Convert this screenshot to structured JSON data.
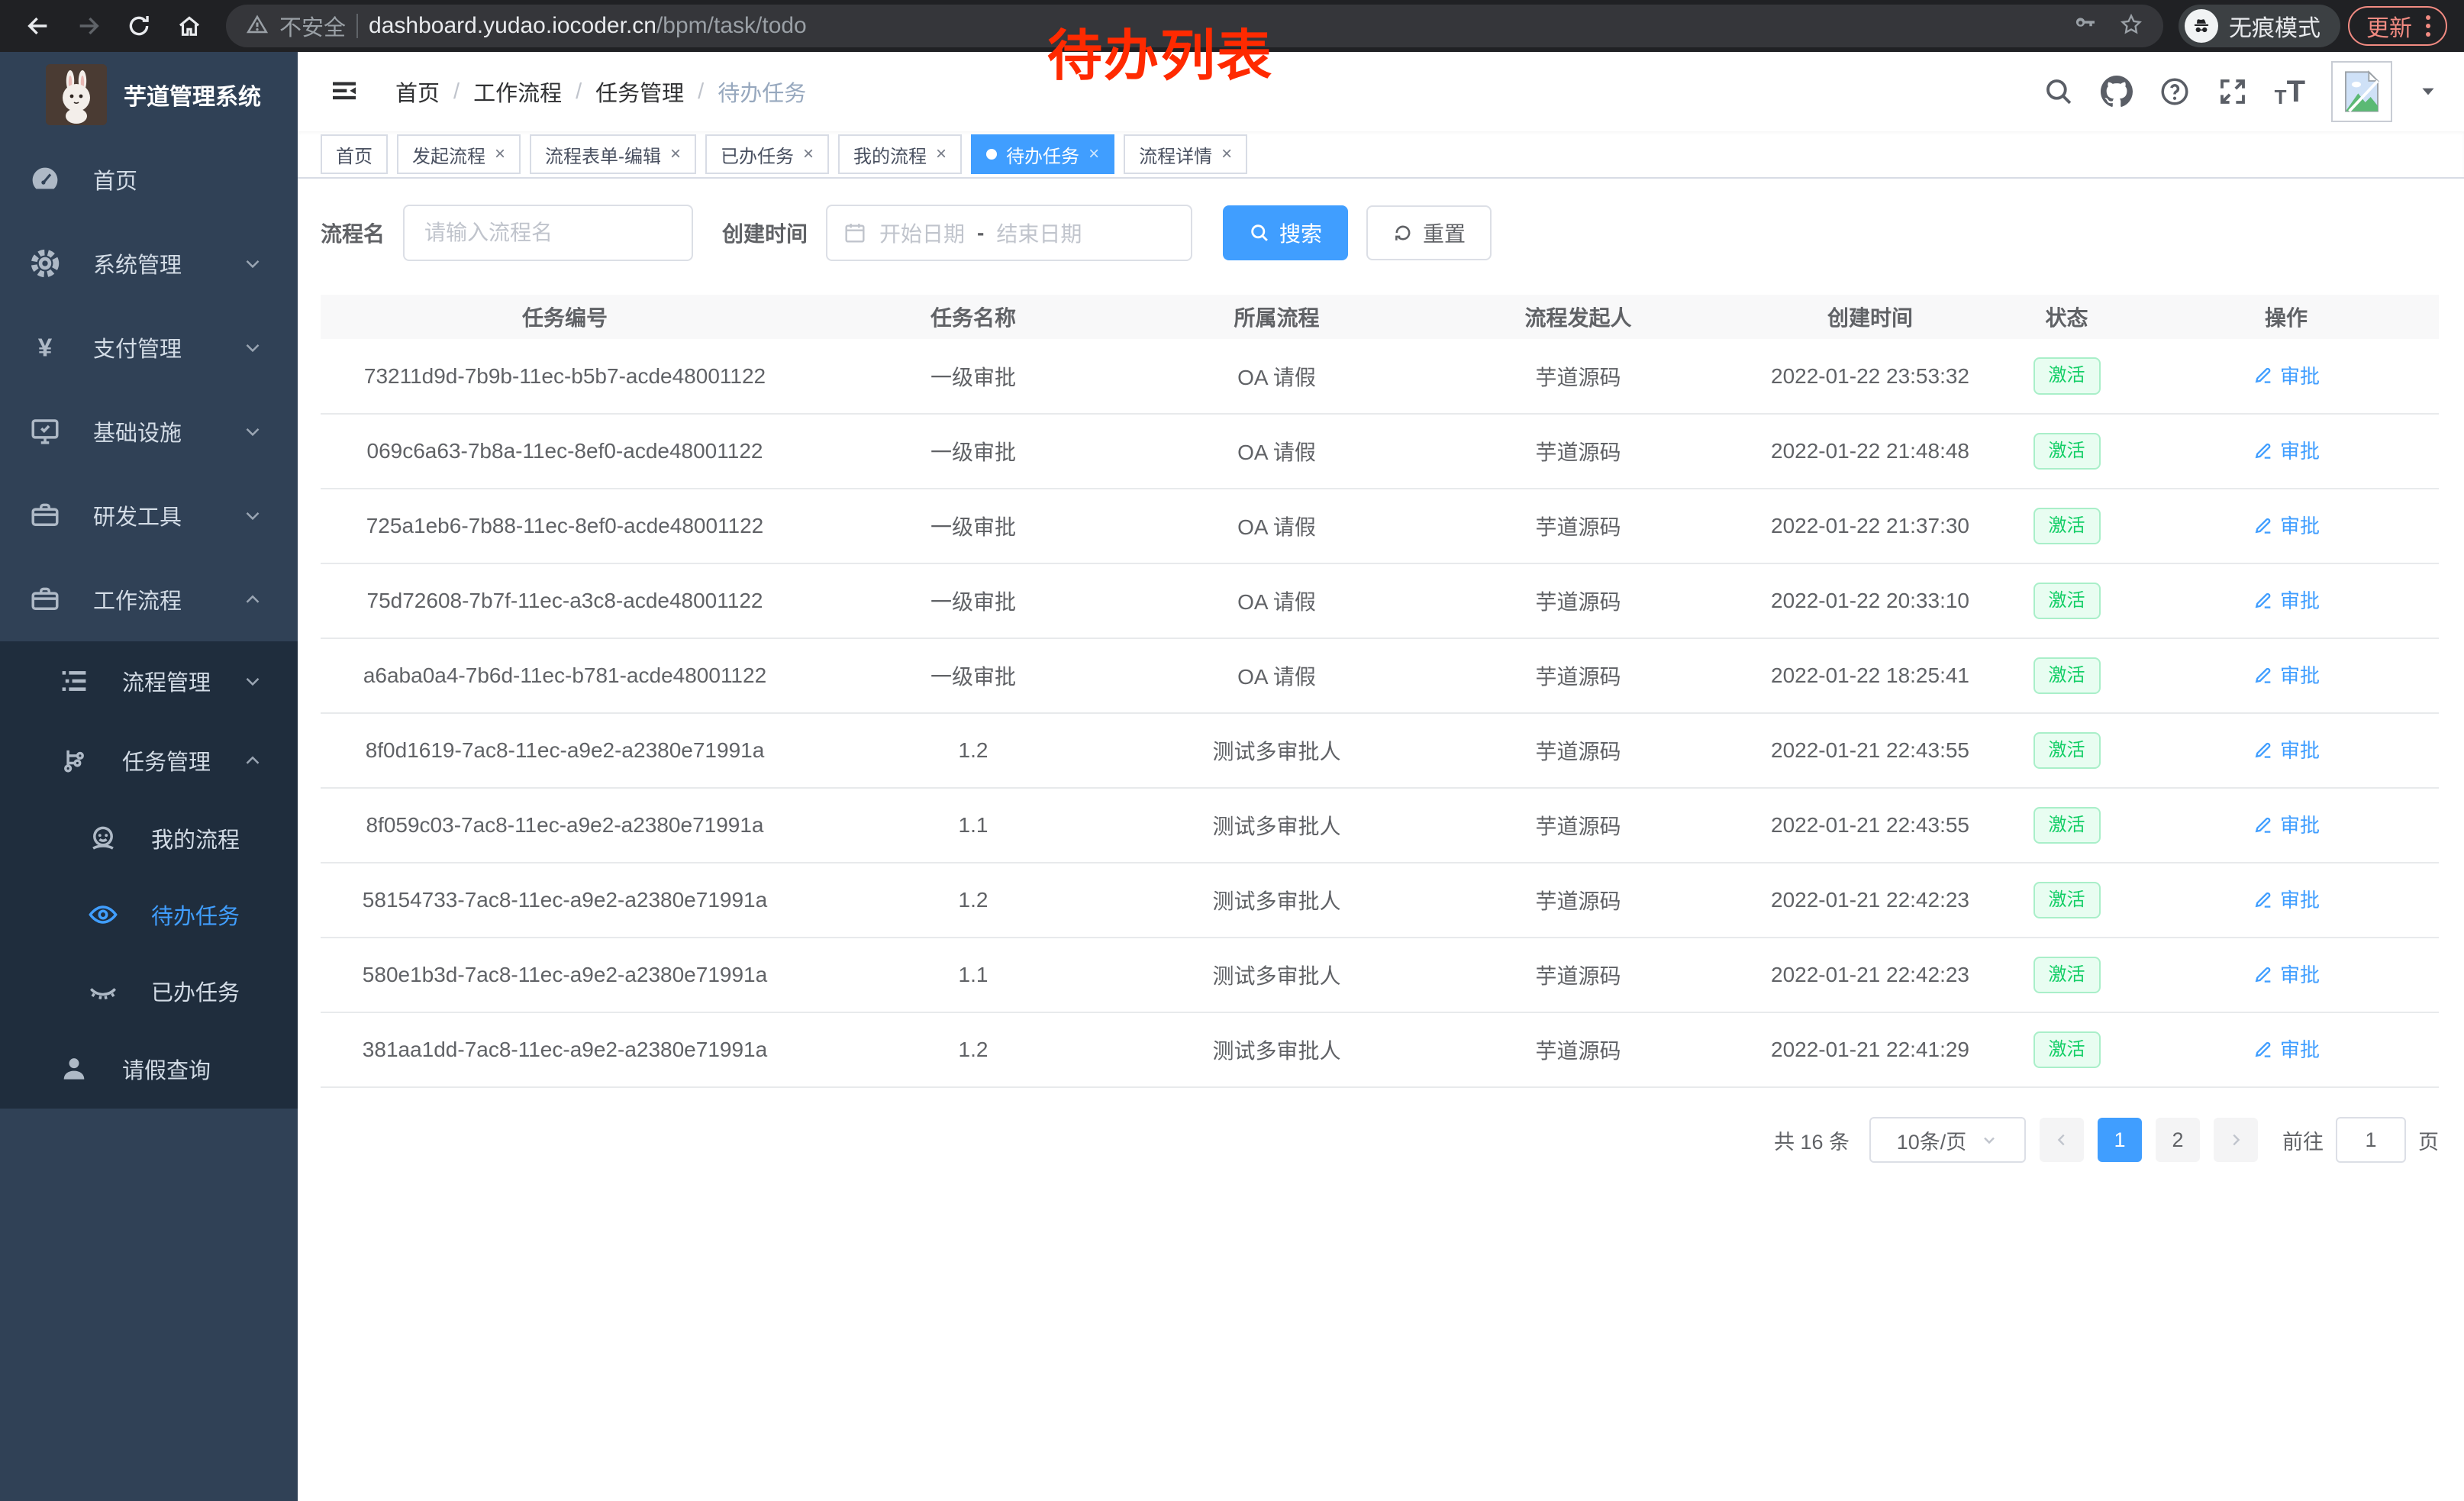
{
  "colors": {
    "accent": "#409eff",
    "success": "#13ce66",
    "success_bg": "#e8fdf1",
    "annotation_red": "#ff2a00",
    "sidebar_bg": "#304156",
    "sidebar_submenu_bg": "#1f2d3d",
    "update_chip": "#f28b82"
  },
  "annotation": {
    "text": "待办列表"
  },
  "browser": {
    "security_label": "不安全",
    "url_host": "dashboard.yudao.iocoder.cn",
    "url_path": "/bpm/task/todo",
    "incognito_label": "无痕模式",
    "update_label": "更新"
  },
  "sidebar": {
    "title": "芋道管理系统",
    "menu": [
      {
        "label": "首页",
        "icon": "dashboard-icon",
        "level": 1,
        "chevron": null,
        "submenu": false,
        "active": false
      },
      {
        "label": "系统管理",
        "icon": "gear-icon",
        "level": 1,
        "chevron": "down",
        "submenu": false,
        "active": false
      },
      {
        "label": "支付管理",
        "icon": "yen-icon",
        "level": 1,
        "chevron": "down",
        "submenu": false,
        "active": false
      },
      {
        "label": "基础设施",
        "icon": "monitor-icon",
        "level": 1,
        "chevron": "down",
        "submenu": false,
        "active": false
      },
      {
        "label": "研发工具",
        "icon": "briefcase-icon",
        "level": 1,
        "chevron": "down",
        "submenu": false,
        "active": false
      },
      {
        "label": "工作流程",
        "icon": "briefcase-icon",
        "level": 1,
        "chevron": "up",
        "submenu": false,
        "active": false
      },
      {
        "label": "流程管理",
        "icon": "list-tree-icon",
        "level": 2,
        "chevron": "down",
        "submenu": true,
        "active": false
      },
      {
        "label": "任务管理",
        "icon": "branch-icon",
        "level": 2,
        "chevron": "up",
        "submenu": true,
        "active": false
      },
      {
        "label": "我的流程",
        "icon": "robot-icon",
        "level": 3,
        "chevron": null,
        "submenu": true,
        "active": false
      },
      {
        "label": "待办任务",
        "icon": "eye-icon",
        "level": 3,
        "chevron": null,
        "submenu": true,
        "active": true
      },
      {
        "label": "已办任务",
        "icon": "eye-closed-icon",
        "level": 3,
        "chevron": null,
        "submenu": true,
        "active": false
      },
      {
        "label": "请假查询",
        "icon": "user-icon",
        "level": 2,
        "chevron": null,
        "submenu": true,
        "active": false
      }
    ]
  },
  "breadcrumb": {
    "items": [
      "首页",
      "工作流程",
      "任务管理",
      "待办任务"
    ]
  },
  "tabs": [
    {
      "label": "首页",
      "closable": false,
      "active": false
    },
    {
      "label": "发起流程",
      "closable": true,
      "active": false
    },
    {
      "label": "流程表单-编辑",
      "closable": true,
      "active": false
    },
    {
      "label": "已办任务",
      "closable": true,
      "active": false
    },
    {
      "label": "我的流程",
      "closable": true,
      "active": false
    },
    {
      "label": "待办任务",
      "closable": true,
      "active": true
    },
    {
      "label": "流程详情",
      "closable": true,
      "active": false
    }
  ],
  "filters": {
    "name_label": "流程名",
    "name_placeholder": "请输入流程名",
    "time_label": "创建时间",
    "start_placeholder": "开始日期",
    "range_separator": "-",
    "end_placeholder": "结束日期",
    "search_label": "搜索",
    "reset_label": "重置"
  },
  "table": {
    "columns": [
      "任务编号",
      "任务名称",
      "所属流程",
      "流程发起人",
      "创建时间",
      "状态",
      "操作"
    ],
    "status_label": "激活",
    "action_label": "审批",
    "rows": [
      {
        "id": "73211d9d-7b9b-11ec-b5b7-acde48001122",
        "name": "一级审批",
        "process": "OA 请假",
        "starter": "芋道源码",
        "created": "2022-01-22 23:53:32"
      },
      {
        "id": "069c6a63-7b8a-11ec-8ef0-acde48001122",
        "name": "一级审批",
        "process": "OA 请假",
        "starter": "芋道源码",
        "created": "2022-01-22 21:48:48"
      },
      {
        "id": "725a1eb6-7b88-11ec-8ef0-acde48001122",
        "name": "一级审批",
        "process": "OA 请假",
        "starter": "芋道源码",
        "created": "2022-01-22 21:37:30"
      },
      {
        "id": "75d72608-7b7f-11ec-a3c8-acde48001122",
        "name": "一级审批",
        "process": "OA 请假",
        "starter": "芋道源码",
        "created": "2022-01-22 20:33:10"
      },
      {
        "id": "a6aba0a4-7b6d-11ec-b781-acde48001122",
        "name": "一级审批",
        "process": "OA 请假",
        "starter": "芋道源码",
        "created": "2022-01-22 18:25:41"
      },
      {
        "id": "8f0d1619-7ac8-11ec-a9e2-a2380e71991a",
        "name": "1.2",
        "process": "测试多审批人",
        "starter": "芋道源码",
        "created": "2022-01-21 22:43:55"
      },
      {
        "id": "8f059c03-7ac8-11ec-a9e2-a2380e71991a",
        "name": "1.1",
        "process": "测试多审批人",
        "starter": "芋道源码",
        "created": "2022-01-21 22:43:55"
      },
      {
        "id": "58154733-7ac8-11ec-a9e2-a2380e71991a",
        "name": "1.2",
        "process": "测试多审批人",
        "starter": "芋道源码",
        "created": "2022-01-21 22:42:23"
      },
      {
        "id": "580e1b3d-7ac8-11ec-a9e2-a2380e71991a",
        "name": "1.1",
        "process": "测试多审批人",
        "starter": "芋道源码",
        "created": "2022-01-21 22:42:23"
      },
      {
        "id": "381aa1dd-7ac8-11ec-a9e2-a2380e71991a",
        "name": "1.2",
        "process": "测试多审批人",
        "starter": "芋道源码",
        "created": "2022-01-21 22:41:29"
      }
    ]
  },
  "pagination": {
    "total": "共 16 条",
    "page_size": "10条/页",
    "pages": [
      "1",
      "2"
    ],
    "active_page": "1",
    "goto_label": "前往",
    "goto_value": "1",
    "page_suffix": "页"
  }
}
